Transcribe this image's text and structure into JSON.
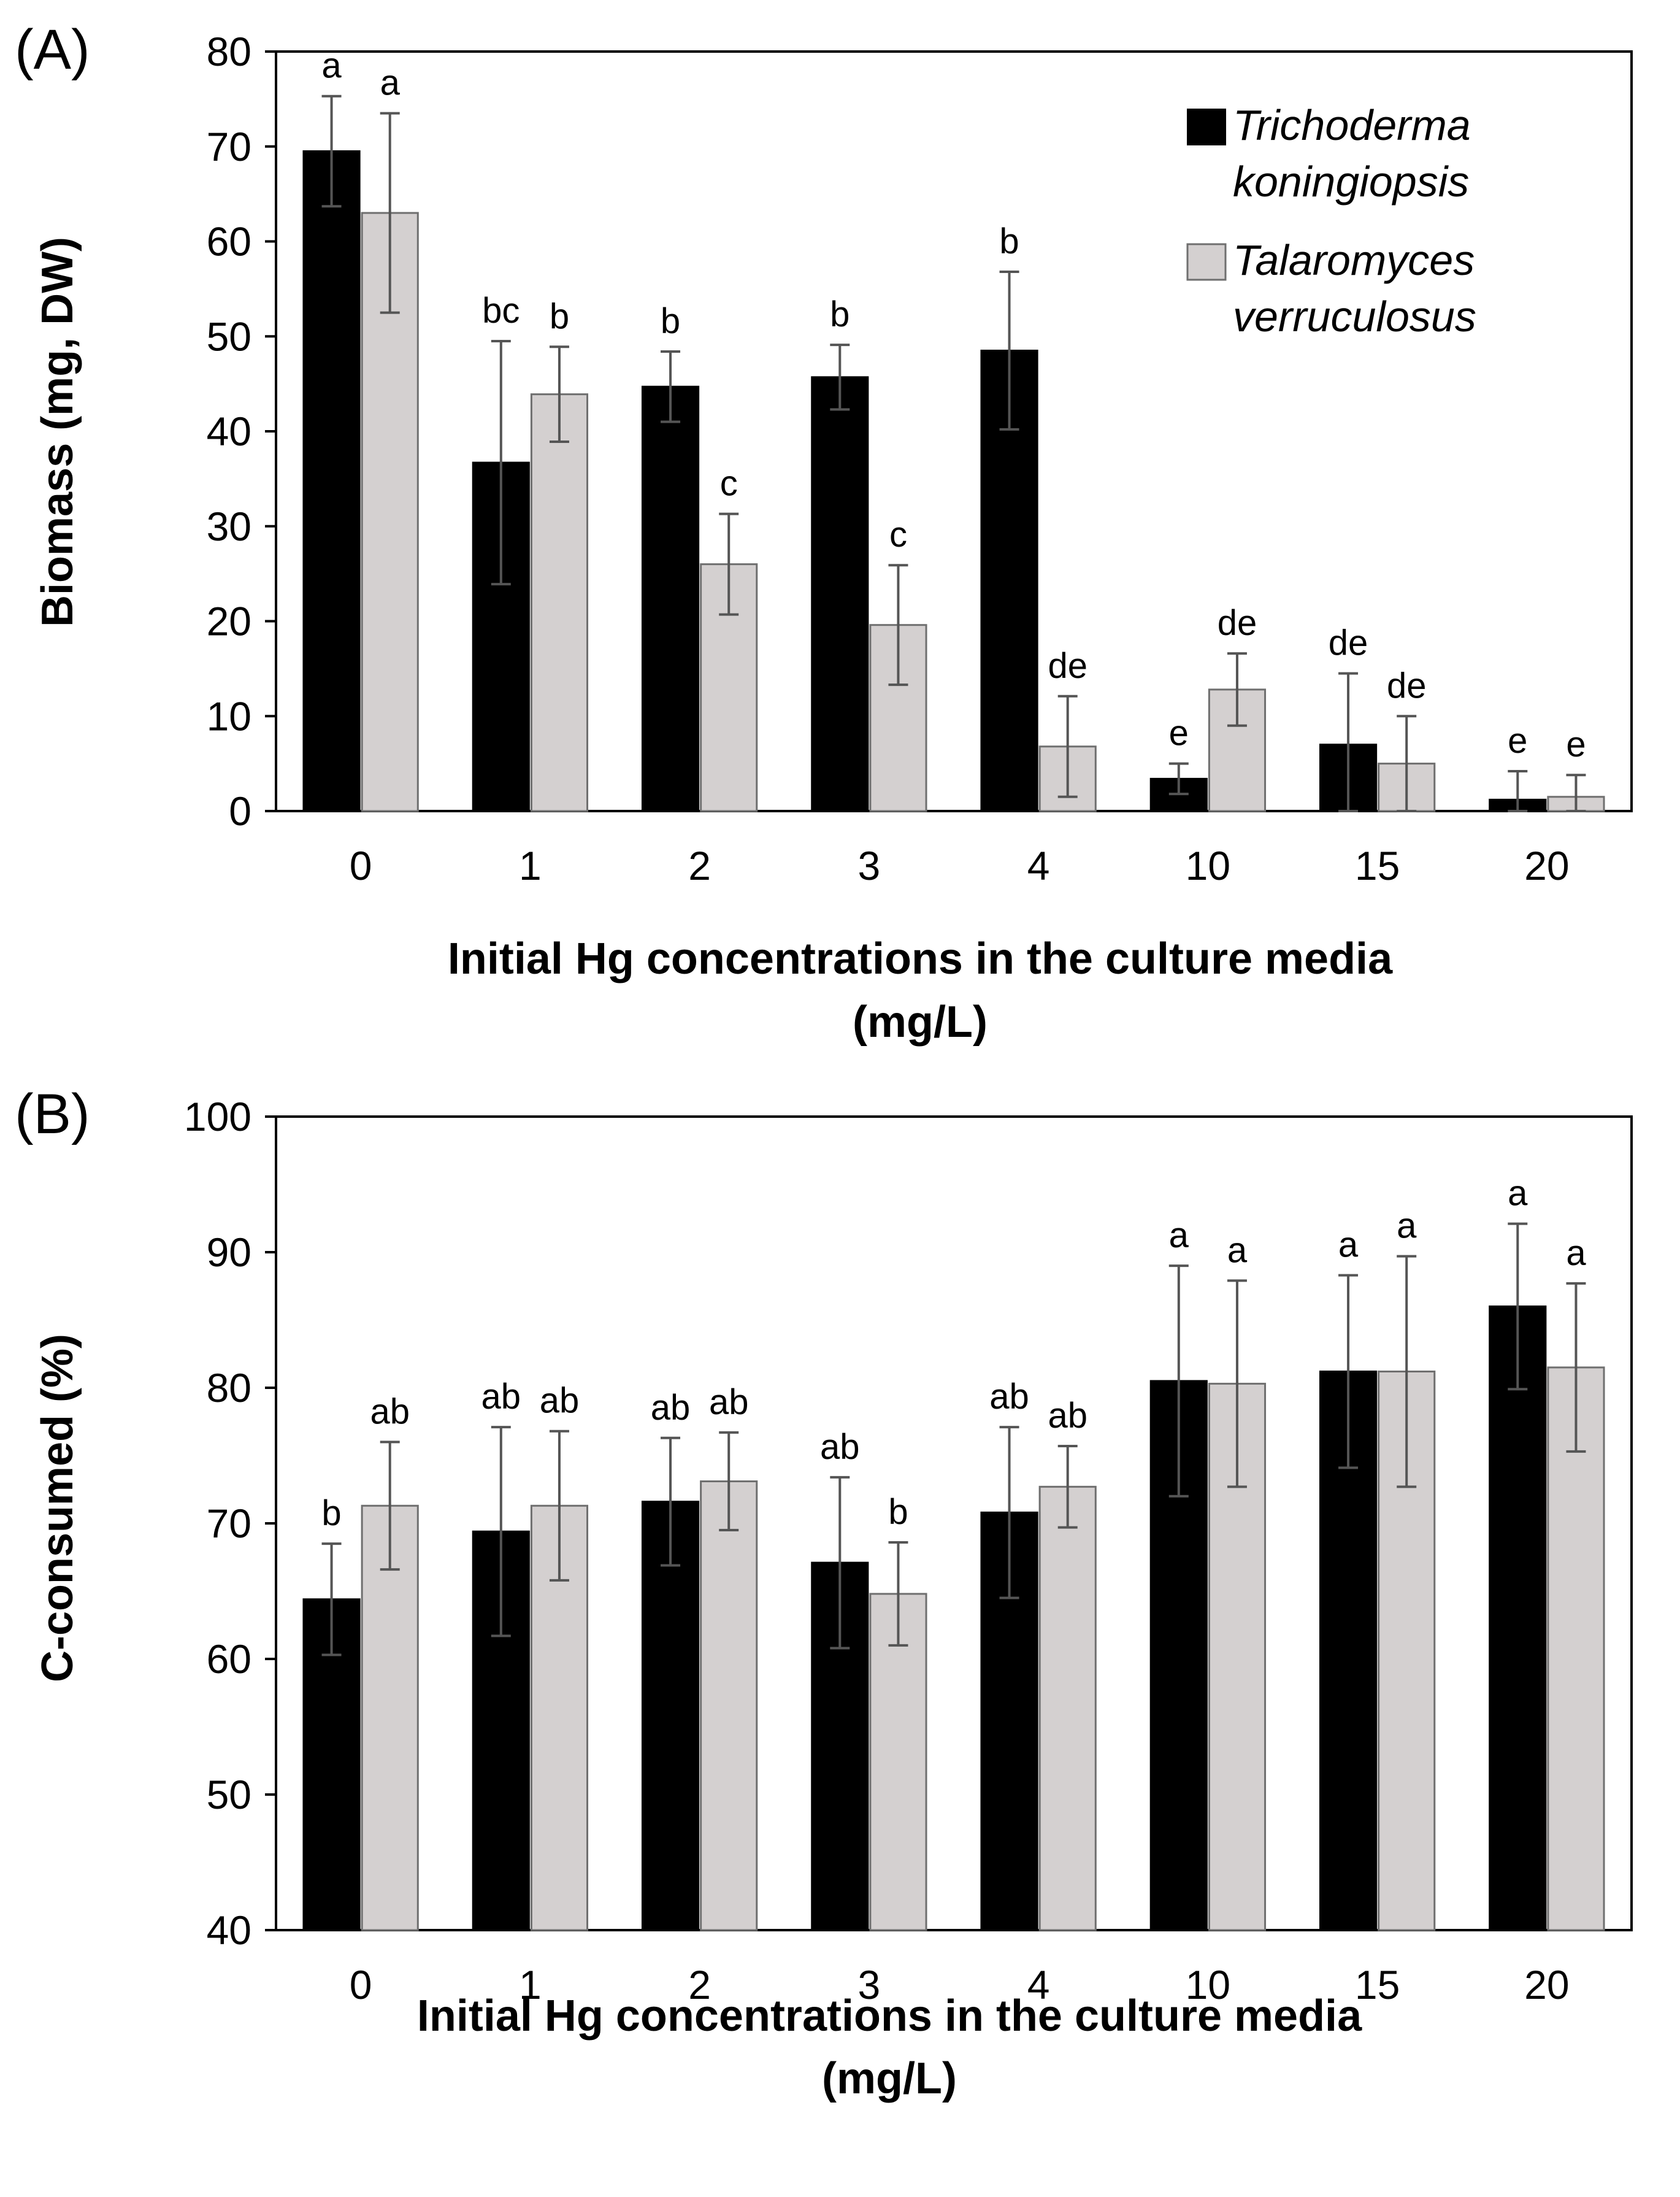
{
  "colors": {
    "series1": "#000000",
    "series2": "#d4d0d0",
    "series2_edge": "#6f6f6f",
    "errorbar": "#555555",
    "axis": "#000000"
  },
  "chart_data": [
    {
      "panel": "(A)",
      "type": "bar",
      "categories": [
        "0",
        "1",
        "2",
        "3",
        "4",
        "10",
        "15",
        "20"
      ],
      "xlabel": "Initial Hg concentrations in the culture media",
      "xlabel_line2": "(mg/L)",
      "ylabel": "Biomass (mg, DW)",
      "ylim": [
        0,
        80
      ],
      "yticks": [
        0,
        10,
        20,
        30,
        40,
        50,
        60,
        70,
        80
      ],
      "legend_position": "top-right",
      "series": [
        {
          "name": "Trichoderma koningiopsis",
          "legend_lines": [
            "Trichoderma",
            "koningiopsis"
          ],
          "values": [
            69.5,
            36.7,
            44.7,
            45.7,
            48.5,
            3.4,
            7.0,
            1.2
          ],
          "errors": [
            5.8,
            12.8,
            3.7,
            3.4,
            8.3,
            1.6,
            7.5,
            3.0
          ],
          "labels": [
            "a",
            "bc",
            "b",
            "b",
            "b",
            "e",
            "de",
            "e"
          ]
        },
        {
          "name": "Talaromyces verruculosus",
          "legend_lines": [
            "Talaromyces",
            "verruculosus"
          ],
          "values": [
            63.0,
            43.9,
            26.0,
            19.6,
            6.8,
            12.8,
            5.0,
            1.5
          ],
          "errors": [
            10.5,
            5.0,
            5.3,
            6.3,
            5.3,
            3.8,
            5.0,
            2.3
          ],
          "labels": [
            "a",
            "b",
            "c",
            "c",
            "de",
            "de",
            "de",
            "e"
          ]
        }
      ]
    },
    {
      "panel": "(B)",
      "type": "bar",
      "categories": [
        "0",
        "1",
        "2",
        "3",
        "4",
        "10",
        "15",
        "20"
      ],
      "xlabel": "Initial Hg concentrations in the culture media",
      "xlabel_line2": "(mg/L)",
      "ylabel": "C-consumed (%)",
      "ylim": [
        40,
        100
      ],
      "yticks": [
        40,
        50,
        60,
        70,
        80,
        90,
        100
      ],
      "series": [
        {
          "name": "Trichoderma koningiopsis",
          "values": [
            64.4,
            69.4,
            71.6,
            67.1,
            70.8,
            80.5,
            81.2,
            86.0
          ],
          "errors": [
            4.1,
            7.7,
            4.7,
            6.3,
            6.3,
            8.5,
            7.1,
            6.1
          ],
          "labels": [
            "b",
            "ab",
            "ab",
            "ab",
            "ab",
            "a",
            "a",
            "a"
          ]
        },
        {
          "name": "Talaromyces verruculosus",
          "values": [
            71.3,
            71.3,
            73.1,
            64.8,
            72.7,
            80.3,
            81.2,
            81.5
          ],
          "errors": [
            4.7,
            5.5,
            3.6,
            3.8,
            3.0,
            7.6,
            8.5,
            6.2
          ],
          "labels": [
            "ab",
            "ab",
            "ab",
            "b",
            "ab",
            "a",
            "a",
            "a"
          ]
        }
      ]
    }
  ]
}
